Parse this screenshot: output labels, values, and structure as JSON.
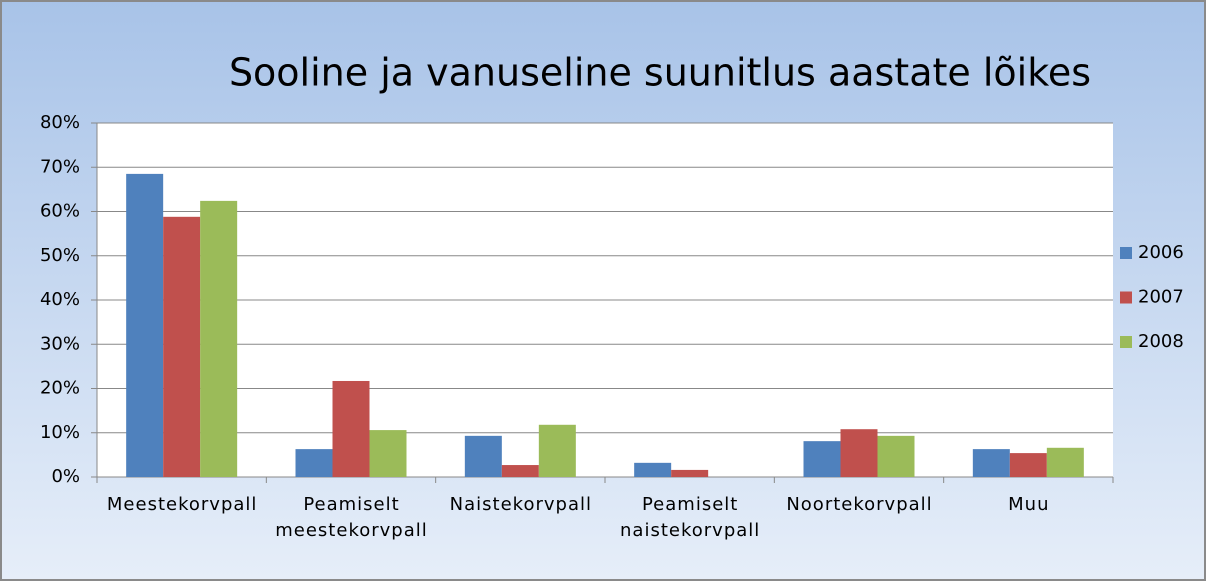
{
  "chart_data": {
    "type": "bar",
    "title": "Sooline ja vanuseline suunitlus aastate lõikes",
    "categories": [
      "Meestekorvpall",
      "Peamiselt meestekorvpall",
      "Naistekorvpall",
      "Peamiselt naistekorvpall",
      "Noortekorvpall",
      "Muu"
    ],
    "series": [
      {
        "name": "2006",
        "color": "#4f81bd",
        "values": [
          68.5,
          6.3,
          9.3,
          3.2,
          8.1,
          6.3
        ]
      },
      {
        "name": "2007",
        "color": "#c0504d",
        "values": [
          58.8,
          21.7,
          2.7,
          1.6,
          10.8,
          5.4
        ]
      },
      {
        "name": "2008",
        "color": "#9bbb59",
        "values": [
          62.4,
          10.6,
          11.8,
          0,
          9.3,
          6.6
        ]
      }
    ],
    "ylim": [
      0,
      80
    ],
    "yticks": [
      {
        "value": 0,
        "label": "0%"
      },
      {
        "value": 10,
        "label": "10%"
      },
      {
        "value": 20,
        "label": "20%"
      },
      {
        "value": 30,
        "label": "30%"
      },
      {
        "value": 40,
        "label": "40%"
      },
      {
        "value": 50,
        "label": "50%"
      },
      {
        "value": 60,
        "label": "60%"
      },
      {
        "value": 70,
        "label": "70%"
      },
      {
        "value": 80,
        "label": "80%"
      }
    ],
    "grid": true,
    "legend": "right"
  }
}
